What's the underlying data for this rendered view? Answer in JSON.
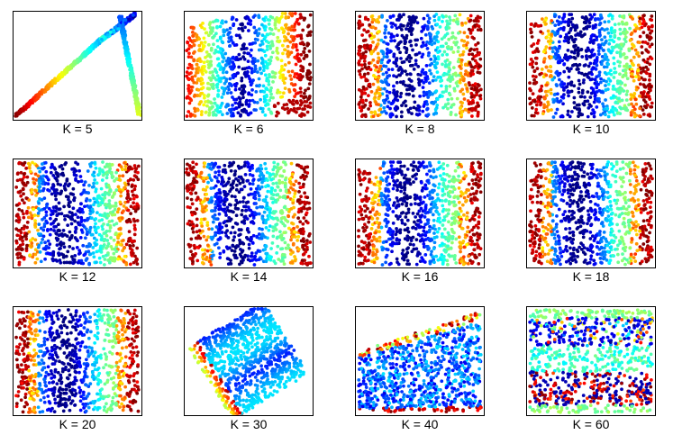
{
  "figure": {
    "panels": [
      {
        "label": "K = 5",
        "pattern": "branch"
      },
      {
        "label": "K = 6",
        "pattern": "fold"
      },
      {
        "label": "K = 8",
        "pattern": "stripes"
      },
      {
        "label": "K = 10",
        "pattern": "stripes"
      },
      {
        "label": "K = 12",
        "pattern": "stripes"
      },
      {
        "label": "K = 14",
        "pattern": "stripes-tilted"
      },
      {
        "label": "K = 16",
        "pattern": "stripes"
      },
      {
        "label": "K = 18",
        "pattern": "stripes"
      },
      {
        "label": "K = 20",
        "pattern": "stripes"
      },
      {
        "label": "K = 30",
        "pattern": "rotated"
      },
      {
        "label": "K = 40",
        "pattern": "collapse"
      },
      {
        "label": "K = 60",
        "pattern": "horizontal"
      }
    ]
  },
  "chart_data": {
    "type": "scatter",
    "colormap": "jet",
    "colors": [
      "#00008f",
      "#0000ff",
      "#00ffff",
      "#ffff00",
      "#ff0000",
      "#800000"
    ],
    "axes": "none",
    "grid": false
  }
}
